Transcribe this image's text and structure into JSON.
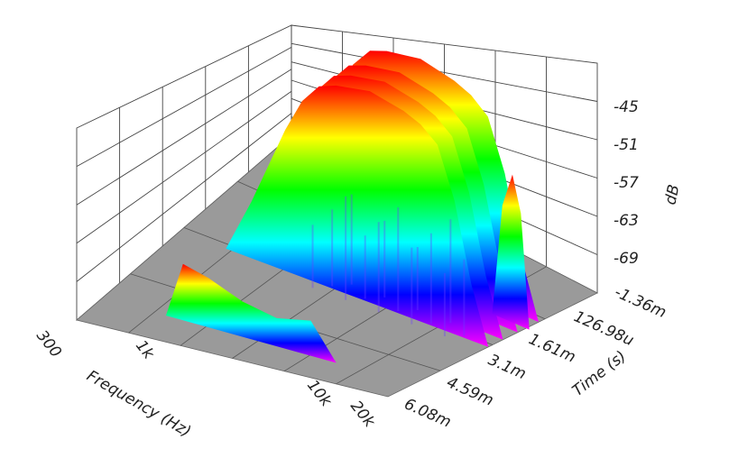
{
  "chart_data": {
    "type": "surface3d",
    "title": "",
    "xlabel": "Frequency (Hz)",
    "ylabel": "Time (s)",
    "zlabel": "dB",
    "x_ticks": [
      "300",
      "1k",
      "10k",
      "20k"
    ],
    "y_ticks": [
      "-1.36m",
      "126.98u",
      "1.61m",
      "3.1m",
      "4.59m",
      "6.08m"
    ],
    "z_ticks": [
      "-45",
      "-51",
      "-57",
      "-63",
      "-69"
    ],
    "zlim": [
      -74,
      -42
    ],
    "colormap": [
      "#ff00ff",
      "#0000ff",
      "#00ffff",
      "#00ff00",
      "#ffff00",
      "#ff0000"
    ],
    "floor_color": "#999999",
    "ridge_profile": {
      "x_log_hz": [
        2.48,
        2.75,
        2.9,
        3.0,
        3.1,
        3.2,
        3.3,
        3.4,
        3.5,
        3.6,
        3.7,
        3.8,
        3.9,
        4.0,
        4.1,
        4.2,
        4.3
      ],
      "peak_db": [
        -74,
        -74,
        -66,
        -60,
        -54,
        -49,
        -46,
        -45,
        -44.5,
        -44,
        -44.5,
        -45,
        -46,
        -48,
        -55,
        -66,
        -74
      ]
    },
    "secondary_ridge_profile": {
      "x_log_hz": [
        4.1,
        4.16,
        4.22,
        4.27,
        4.32
      ],
      "peak_db": [
        -74,
        -58,
        -53,
        -58,
        -74
      ]
    },
    "low_band_profile": {
      "x_log_hz": [
        2.85,
        2.95,
        3.1,
        3.3,
        3.5,
        3.7,
        3.85
      ],
      "peak_db": [
        -74,
        -66,
        -67,
        -69,
        -70,
        -69,
        -74
      ]
    }
  }
}
